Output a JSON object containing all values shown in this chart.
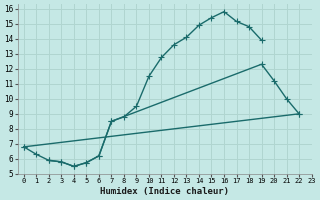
{
  "xlabel": "Humidex (Indice chaleur)",
  "bg_color": "#c5e8e5",
  "grid_color": "#b0d5d0",
  "line_color": "#1a6b6b",
  "xlim": [
    -0.5,
    23
  ],
  "ylim": [
    5,
    16.3
  ],
  "xticks": [
    0,
    1,
    2,
    3,
    4,
    5,
    6,
    7,
    8,
    9,
    10,
    11,
    12,
    13,
    14,
    15,
    16,
    17,
    18,
    19,
    20,
    21,
    22,
    23
  ],
  "yticks": [
    5,
    6,
    7,
    8,
    9,
    10,
    11,
    12,
    13,
    14,
    15,
    16
  ],
  "line1_x": [
    0,
    1,
    2,
    3,
    4,
    5,
    6,
    7,
    8,
    9,
    10,
    11,
    12,
    13,
    14,
    15,
    16,
    17,
    18,
    19
  ],
  "line1_y": [
    6.8,
    6.3,
    5.9,
    5.8,
    5.5,
    5.75,
    6.2,
    8.5,
    8.8,
    9.5,
    11.5,
    12.75,
    13.6,
    14.1,
    14.9,
    15.4,
    15.8,
    15.15,
    14.8,
    13.9
  ],
  "line2_x": [
    2,
    3,
    4,
    5,
    6,
    7,
    19,
    20,
    21,
    22
  ],
  "line2_y": [
    5.9,
    5.8,
    5.5,
    5.75,
    6.2,
    8.5,
    12.3,
    11.2,
    10.0,
    9.0
  ],
  "line3_x": [
    0,
    22
  ],
  "line3_y": [
    6.8,
    9.0
  ]
}
